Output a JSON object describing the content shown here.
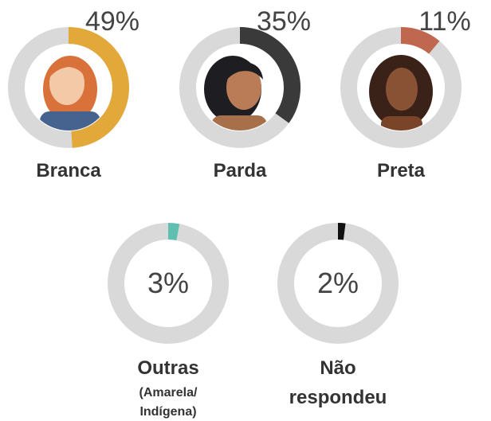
{
  "chart_data": [
    {
      "type": "donut",
      "title": "Branca",
      "values": [
        49
      ],
      "value_labels": [
        "49%"
      ],
      "color": "#e3a83a"
    },
    {
      "type": "donut",
      "title": "Parda",
      "values": [
        35
      ],
      "value_labels": [
        "35%"
      ],
      "color": "#3a3a3a"
    },
    {
      "type": "donut",
      "title": "Preta",
      "values": [
        11
      ],
      "value_labels": [
        "11%"
      ],
      "color": "#c0674f"
    },
    {
      "type": "donut",
      "title": "Outras",
      "subtitle": "(Amarela/ Indígena)",
      "values": [
        3
      ],
      "value_labels": [
        "3%"
      ],
      "color": "#5fbfb0"
    },
    {
      "type": "donut",
      "title": "Não respondeu",
      "values": [
        2
      ],
      "value_labels": [
        "2%"
      ],
      "color": "#111111"
    }
  ]
}
